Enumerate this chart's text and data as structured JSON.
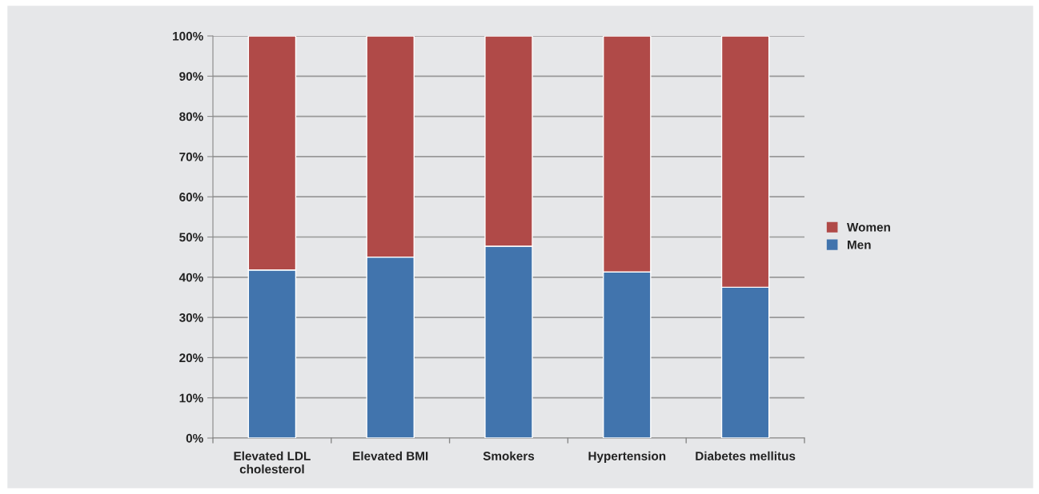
{
  "chart_data": {
    "type": "bar",
    "stacked": true,
    "categories": [
      "Elevated LDL\ncholesterol",
      "Elevated BMI",
      "Smokers",
      "Hypertension",
      "Diabetes mellitus"
    ],
    "series": [
      {
        "name": "Men",
        "color": "#4174ad",
        "values": [
          41.8,
          45.0,
          47.7,
          41.3,
          37.5
        ]
      },
      {
        "name": "Women",
        "color": "#b04a48",
        "values": [
          58.2,
          55.0,
          52.3,
          58.7,
          62.5
        ]
      }
    ],
    "ylim": [
      0,
      100
    ],
    "yticks": [
      {
        "value": 0,
        "label": "0%"
      },
      {
        "value": 10,
        "label": "10%"
      },
      {
        "value": 20,
        "label": "20%"
      },
      {
        "value": 30,
        "label": "30%"
      },
      {
        "value": 40,
        "label": "40%"
      },
      {
        "value": 50,
        "label": "50%"
      },
      {
        "value": 60,
        "label": "60%"
      },
      {
        "value": 70,
        "label": "70%"
      },
      {
        "value": 80,
        "label": "80%"
      },
      {
        "value": 90,
        "label": "90%"
      },
      {
        "value": 100,
        "label": "100%"
      }
    ],
    "grid": "y",
    "legend": "right"
  }
}
